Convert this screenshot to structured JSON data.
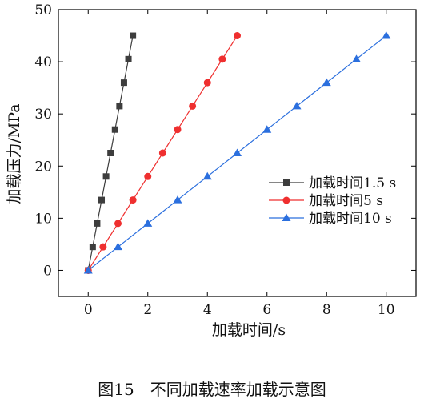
{
  "caption": "图15　不同加载速率加载示意图",
  "chart_data": {
    "type": "line",
    "xlabel": "加载时间/s",
    "ylabel": "加载压力/MPa",
    "xlim": [
      -1,
      11
    ],
    "ylim": [
      -5,
      50
    ],
    "xticks": [
      0,
      2,
      4,
      6,
      8,
      10
    ],
    "yticks": [
      0,
      10,
      20,
      30,
      40,
      50
    ],
    "grid": false,
    "legend_position": "right",
    "series": [
      {
        "name": "加载时间1.5 s",
        "color": "#3d3d3d",
        "marker": "square",
        "x": [
          0,
          0.15,
          0.3,
          0.45,
          0.6,
          0.75,
          0.9,
          1.05,
          1.2,
          1.35,
          1.5
        ],
        "y": [
          0,
          4.5,
          9,
          13.5,
          18,
          22.5,
          27,
          31.5,
          36,
          40.5,
          45
        ]
      },
      {
        "name": "加载时间5 s",
        "color": "#ef2f2f",
        "marker": "circle",
        "x": [
          0,
          0.5,
          1,
          1.5,
          2,
          2.5,
          3,
          3.5,
          4,
          4.5,
          5
        ],
        "y": [
          0,
          4.5,
          9,
          13.5,
          18,
          22.5,
          27,
          31.5,
          36,
          40.5,
          45
        ]
      },
      {
        "name": "加载时间10 s",
        "color": "#2b6fde",
        "marker": "triangle",
        "x": [
          0,
          1,
          2,
          3,
          4,
          5,
          6,
          7,
          8,
          9,
          10
        ],
        "y": [
          0,
          4.5,
          9,
          13.5,
          18,
          22.5,
          27,
          31.5,
          36,
          40.5,
          45
        ]
      }
    ]
  }
}
